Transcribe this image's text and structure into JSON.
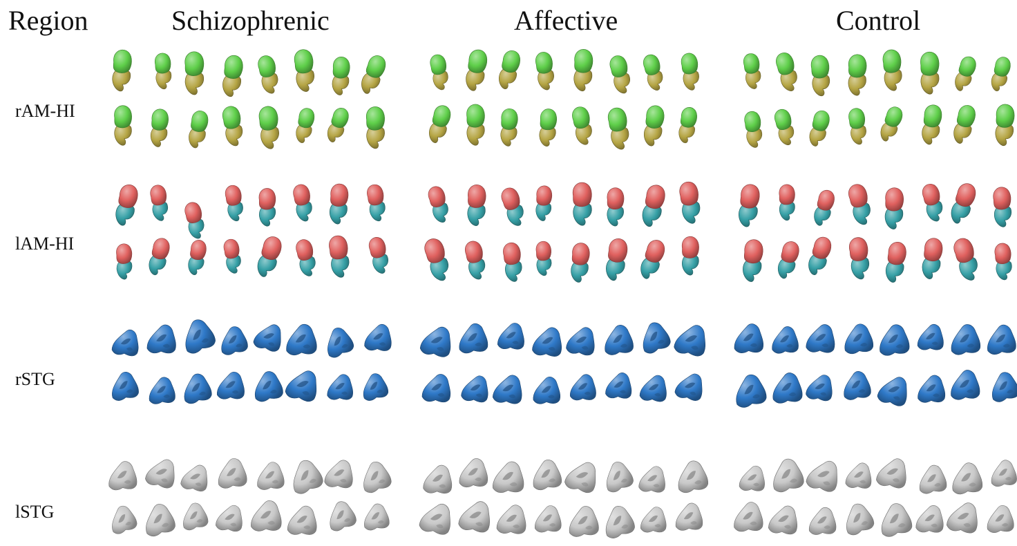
{
  "headers": {
    "region": "Region",
    "groups": [
      "Schizophrenic",
      "Affective",
      "Control"
    ]
  },
  "regions": [
    {
      "label": "rAM-HI",
      "kind": "amhi",
      "top_color": "#5fcf4a",
      "bottom_color": "#b5a544"
    },
    {
      "label": "lAM-HI",
      "kind": "amhi",
      "top_color": "#e0615f",
      "bottom_color": "#36a0a6"
    },
    {
      "label": "rSTG",
      "kind": "stg",
      "top_color": "#2f79c8",
      "bottom_color": "#2f79c8"
    },
    {
      "label": "lSTG",
      "kind": "stg",
      "top_color": "#c9c9c9",
      "bottom_color": "#c9c9c9"
    }
  ]
}
